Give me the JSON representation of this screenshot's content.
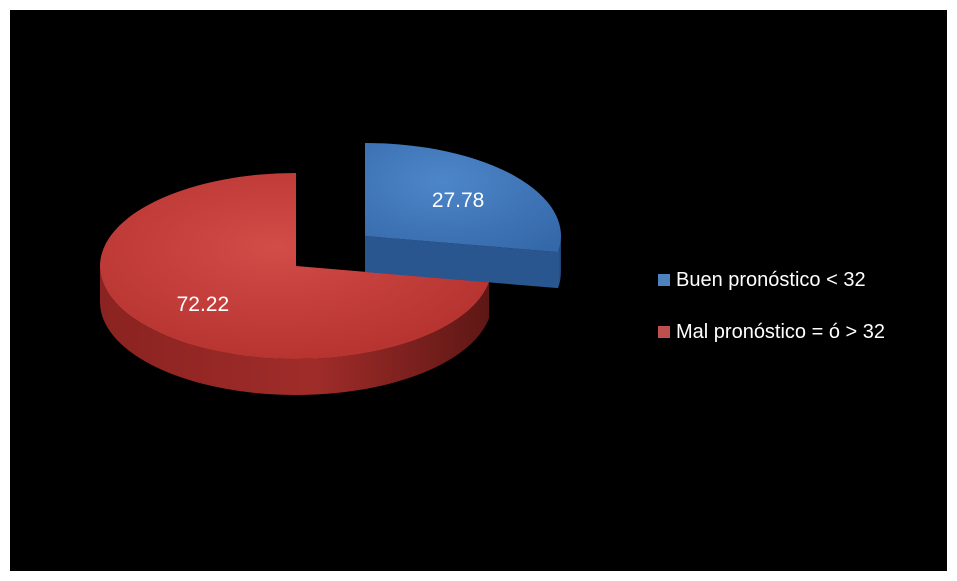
{
  "chart_data": {
    "type": "pie",
    "title": "",
    "categories": [
      "Buen pronóstico < 32",
      "Mal pronóstico = ó > 32"
    ],
    "values": [
      27.78,
      72.22
    ],
    "data_labels": [
      "27.78",
      "72.22"
    ],
    "colors": [
      "#4f81bd",
      "#c0504d"
    ],
    "style": "3d-exploded",
    "legend_position": "right"
  },
  "legend": {
    "items": [
      {
        "label": "Buen pronóstico < 32",
        "color": "#4f81bd"
      },
      {
        "label": "Mal pronóstico = ó > 32",
        "color": "#c0504d"
      }
    ]
  }
}
